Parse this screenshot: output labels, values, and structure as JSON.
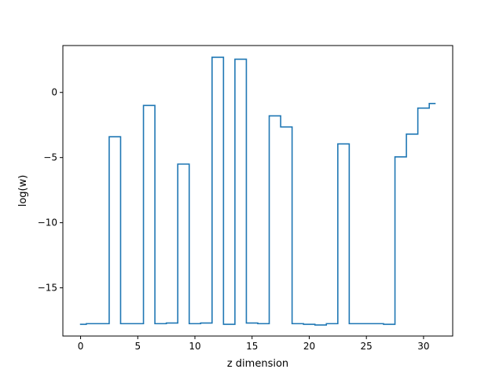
{
  "chart_data": {
    "type": "line",
    "drawstyle": "steps-mid",
    "title": "",
    "xlabel": "z dimension",
    "ylabel": "log(w)",
    "xlim": [
      -1.55,
      32.55
    ],
    "ylim": [
      -18.7,
      3.6
    ],
    "xticks": [
      0,
      5,
      10,
      15,
      20,
      25,
      30
    ],
    "xtick_labels": [
      "0",
      "5",
      "10",
      "15",
      "20",
      "25",
      "30"
    ],
    "yticks": [
      0,
      -5,
      -10,
      -15
    ],
    "ytick_labels": [
      "0",
      "−5",
      "−10",
      "−15"
    ],
    "grid": false,
    "legend": "none",
    "series": [
      {
        "color": "#1f77b4",
        "x": [
          0,
          1,
          2,
          3,
          4,
          5,
          6,
          7,
          8,
          9,
          10,
          11,
          12,
          13,
          14,
          15,
          16,
          17,
          18,
          19,
          20,
          21,
          22,
          23,
          24,
          25,
          26,
          27,
          28,
          29,
          30,
          31
        ],
        "y": [
          -17.8,
          -17.75,
          -17.75,
          -3.4,
          -17.75,
          -17.75,
          -1.0,
          -17.75,
          -17.7,
          -5.5,
          -17.75,
          -17.7,
          2.7,
          -17.8,
          2.55,
          -17.7,
          -17.75,
          -1.8,
          -2.65,
          -17.75,
          -17.8,
          -17.85,
          -17.75,
          -3.95,
          -17.75,
          -17.75,
          -17.75,
          -17.8,
          -4.95,
          -3.2,
          -1.2,
          -0.85
        ]
      }
    ]
  }
}
